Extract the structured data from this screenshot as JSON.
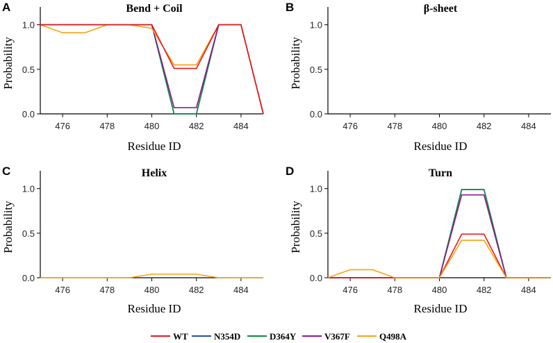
{
  "chart_data": [
    {
      "panel": "A",
      "type": "line",
      "title": "Bend + Coil",
      "xlabel": "Residue ID",
      "ylabel": "Probability",
      "xlim": [
        475,
        485
      ],
      "ylim": [
        0,
        1.2
      ],
      "xticks": [
        476,
        478,
        480,
        482,
        484
      ],
      "yticks": [
        0.0,
        0.5,
        1.0
      ],
      "xtick_labels": [
        "476",
        "478",
        "480",
        "482",
        "484"
      ],
      "ytick_labels": [
        "0.0",
        "0.5",
        "1.0"
      ],
      "x": [
        475,
        476,
        477,
        478,
        479,
        480,
        481,
        482,
        483,
        484,
        485
      ],
      "series": [
        {
          "name": "N354D",
          "values": [
            1.0,
            1.0,
            1.0,
            1.0,
            1.0,
            1.0,
            0.0,
            0.0,
            1.0,
            1.0,
            0.0
          ]
        },
        {
          "name": "D364Y",
          "values": [
            1.0,
            1.0,
            1.0,
            1.0,
            1.0,
            1.0,
            0.0,
            0.0,
            1.0,
            1.0,
            0.0
          ]
        },
        {
          "name": "V367F",
          "values": [
            1.0,
            1.0,
            1.0,
            1.0,
            1.0,
            1.0,
            0.07,
            0.07,
            1.0,
            1.0,
            0.0
          ]
        },
        {
          "name": "Q498A",
          "values": [
            1.0,
            0.91,
            0.91,
            1.0,
            1.0,
            0.96,
            0.55,
            0.55,
            1.0,
            1.0,
            0.0
          ]
        },
        {
          "name": "WT",
          "values": [
            1.0,
            1.0,
            1.0,
            1.0,
            1.0,
            1.0,
            0.51,
            0.51,
            1.0,
            1.0,
            0.0
          ]
        }
      ]
    },
    {
      "panel": "B",
      "type": "line",
      "title": "β-sheet",
      "xlabel": "Residue ID",
      "ylabel": "Probability",
      "xlim": [
        475,
        485
      ],
      "ylim": [
        0,
        1.2
      ],
      "xticks": [
        476,
        478,
        480,
        482,
        484
      ],
      "yticks": [
        0.0,
        0.5,
        1.0
      ],
      "xtick_labels": [
        "476",
        "478",
        "480",
        "482",
        "484"
      ],
      "ytick_labels": [
        "0.0",
        "0.5",
        "1.0"
      ],
      "x": [
        475,
        476,
        477,
        478,
        479,
        480,
        481,
        482,
        483,
        484,
        485
      ],
      "series": []
    },
    {
      "panel": "C",
      "type": "line",
      "title": "Helix",
      "xlabel": "Residue ID",
      "ylabel": "Probability",
      "xlim": [
        475,
        485
      ],
      "ylim": [
        0,
        1.2
      ],
      "xticks": [
        476,
        478,
        480,
        482,
        484
      ],
      "yticks": [
        0.0,
        0.5,
        1.0
      ],
      "xtick_labels": [
        "476",
        "478",
        "480",
        "482",
        "484"
      ],
      "ytick_labels": [
        "0.0",
        "0.5",
        "1.0"
      ],
      "x": [
        475,
        476,
        477,
        478,
        479,
        480,
        481,
        482,
        483,
        484,
        485
      ],
      "series": [
        {
          "name": "Q498A",
          "values": [
            0.0,
            0.0,
            0.0,
            0.0,
            0.0,
            0.04,
            0.04,
            0.04,
            0.0,
            0.0,
            0.0
          ]
        }
      ]
    },
    {
      "panel": "D",
      "type": "line",
      "title": "Turn",
      "xlabel": "Residue ID",
      "ylabel": "Probability",
      "xlim": [
        475,
        485
      ],
      "ylim": [
        0,
        1.2
      ],
      "xticks": [
        476,
        478,
        480,
        482,
        484
      ],
      "yticks": [
        0.0,
        0.5,
        1.0
      ],
      "xtick_labels": [
        "476",
        "478",
        "480",
        "482",
        "484"
      ],
      "ytick_labels": [
        "0.0",
        "0.5",
        "1.0"
      ],
      "x": [
        475,
        476,
        477,
        478,
        479,
        480,
        481,
        482,
        483,
        484,
        485
      ],
      "series": [
        {
          "name": "N354D",
          "values": [
            0.0,
            0.0,
            0.0,
            0.0,
            0.0,
            0.0,
            0.99,
            0.99,
            0.0,
            0.0,
            0.0
          ]
        },
        {
          "name": "D364Y",
          "values": [
            0.0,
            0.0,
            0.0,
            0.0,
            0.0,
            0.0,
            0.99,
            0.99,
            0.0,
            0.0,
            0.0
          ]
        },
        {
          "name": "V367F",
          "values": [
            0.0,
            0.0,
            0.0,
            0.0,
            0.0,
            0.0,
            0.93,
            0.93,
            0.0,
            0.0,
            0.0
          ]
        },
        {
          "name": "WT",
          "values": [
            0.0,
            0.0,
            0.0,
            0.0,
            0.0,
            0.0,
            0.49,
            0.49,
            0.0,
            0.0,
            0.0
          ]
        },
        {
          "name": "Q498A",
          "values": [
            0.0,
            0.09,
            0.09,
            0.0,
            0.0,
            0.0,
            0.42,
            0.42,
            0.0,
            0.0,
            0.0
          ]
        }
      ]
    }
  ],
  "legend": {
    "items": [
      {
        "name": "WT",
        "color": "#e8161b"
      },
      {
        "name": "N354D",
        "color": "#1f4fa8"
      },
      {
        "name": "D364Y",
        "color": "#12883a"
      },
      {
        "name": "V367F",
        "color": "#8b1a8b"
      },
      {
        "name": "Q498A",
        "color": "#f5a314"
      }
    ]
  }
}
